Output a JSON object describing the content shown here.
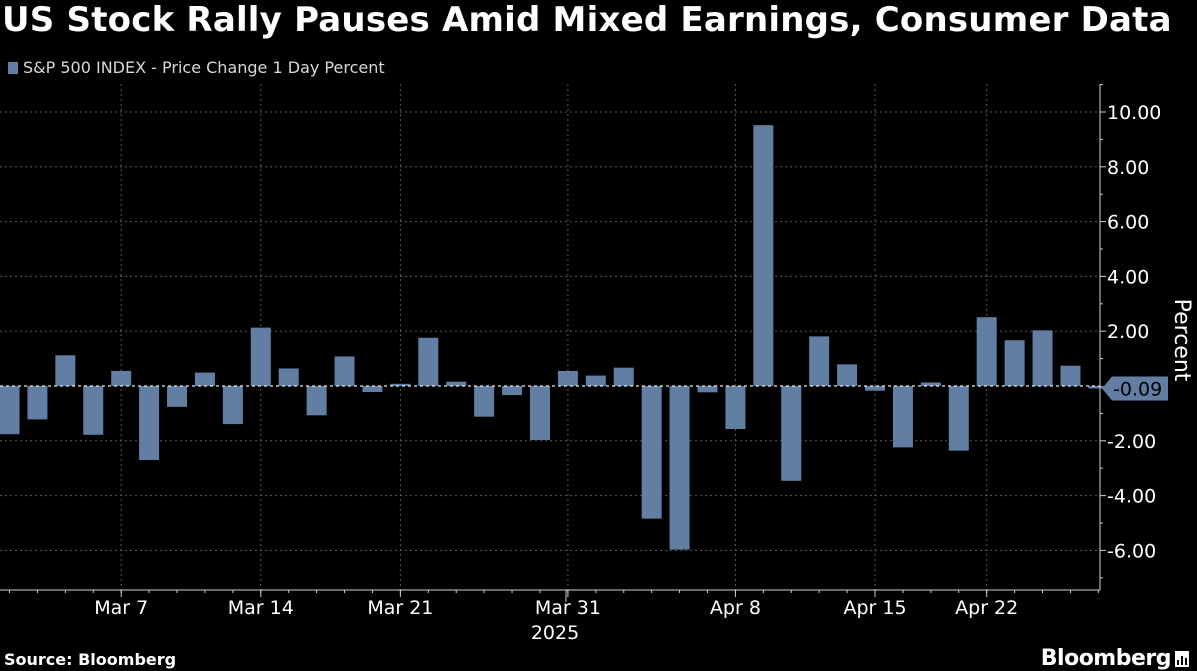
{
  "title": "US Stock Rally Pauses Amid Mixed Earnings, Consumer Data",
  "legend_label": "S&P 500 INDEX - Price Change 1 Day Percent",
  "source": "Source: Bloomberg",
  "brand": "Bloomberg",
  "colors": {
    "bar": "#627fa3",
    "background": "#000000",
    "grid": "#5a5a5a",
    "text": "#ffffff"
  },
  "chart_data": {
    "type": "bar",
    "ylabel": "Percent",
    "ylim": [
      -7.5,
      11.2
    ],
    "yticks": [
      {
        "value": 10,
        "label": "10.00"
      },
      {
        "value": 8,
        "label": "8.00"
      },
      {
        "value": 6,
        "label": "6.00"
      },
      {
        "value": 4,
        "label": "4.00"
      },
      {
        "value": 2,
        "label": "2.00"
      },
      {
        "value": -2,
        "label": "-2.00"
      },
      {
        "value": -4,
        "label": "-4.00"
      },
      {
        "value": -6,
        "label": "-6.00"
      }
    ],
    "last_value_label": "-0.09",
    "last_value": -0.09,
    "xtick_labels": [
      {
        "label": "Mar 7",
        "date": "2025-03-07"
      },
      {
        "label": "Mar 14",
        "date": "2025-03-14"
      },
      {
        "label": "Mar 21",
        "date": "2025-03-21"
      },
      {
        "label": "Mar 31",
        "date": "2025-03-31"
      },
      {
        "label": "Apr 8",
        "date": "2025-04-08"
      },
      {
        "label": "Apr 15",
        "date": "2025-04-15"
      },
      {
        "label": "Apr 22",
        "date": "2025-04-22"
      }
    ],
    "year_label": "2025",
    "grid": true,
    "categories": [
      "2025-03-03",
      "2025-03-04",
      "2025-03-05",
      "2025-03-06",
      "2025-03-07",
      "2025-03-10",
      "2025-03-11",
      "2025-03-12",
      "2025-03-13",
      "2025-03-14",
      "2025-03-17",
      "2025-03-18",
      "2025-03-19",
      "2025-03-20",
      "2025-03-21",
      "2025-03-24",
      "2025-03-25",
      "2025-03-26",
      "2025-03-27",
      "2025-03-28",
      "2025-03-31",
      "2025-04-01",
      "2025-04-02",
      "2025-04-03",
      "2025-04-04",
      "2025-04-07",
      "2025-04-08",
      "2025-04-09",
      "2025-04-10",
      "2025-04-11",
      "2025-04-14",
      "2025-04-15",
      "2025-04-16",
      "2025-04-17",
      "2025-04-21",
      "2025-04-22",
      "2025-04-23",
      "2025-04-24",
      "2025-04-25",
      "2025-04-28"
    ],
    "values": [
      -1.76,
      -1.22,
      1.12,
      -1.78,
      0.55,
      -2.7,
      -0.76,
      0.49,
      -1.39,
      2.13,
      0.64,
      -1.07,
      1.08,
      -0.22,
      0.08,
      1.76,
      0.16,
      -1.12,
      -0.33,
      -1.97,
      0.55,
      0.38,
      0.67,
      -4.84,
      -5.97,
      -0.23,
      -1.57,
      9.52,
      -3.46,
      1.81,
      0.79,
      -0.17,
      -2.24,
      0.13,
      -2.36,
      2.51,
      1.67,
      2.03,
      0.74,
      -0.09
    ]
  }
}
